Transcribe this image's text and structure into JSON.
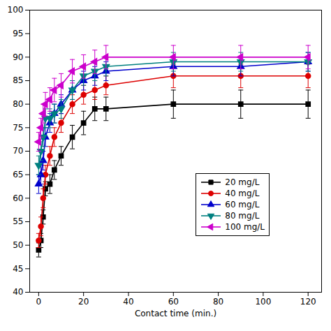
{
  "chart_data": {
    "type": "line",
    "xlabel": "Contact time (min.)",
    "x": [
      0,
      1,
      2,
      3,
      5,
      7,
      10,
      15,
      20,
      25,
      30,
      60,
      90,
      120
    ],
    "series": [
      {
        "name": "20 mg/L",
        "color": "black",
        "marker": "square",
        "line_style": "solid",
        "values": [
          49,
          51,
          56,
          62,
          63,
          66,
          69,
          73,
          76,
          79,
          79,
          80,
          80,
          80
        ],
        "yerr": [
          1.5,
          1.5,
          1.5,
          1.5,
          2,
          2,
          2,
          2.5,
          2.5,
          2.5,
          2.5,
          3,
          3,
          3
        ]
      },
      {
        "name": "40 mg/L",
        "color": "#dd0000",
        "marker": "circle",
        "line_style": "solid",
        "values": [
          51,
          54,
          60,
          65,
          69,
          73,
          76,
          80,
          82,
          83,
          84,
          86,
          86,
          86
        ],
        "yerr": [
          1.5,
          2,
          2,
          2,
          2,
          2,
          2,
          2,
          2,
          2,
          2,
          2.5,
          2.5,
          2.5
        ]
      },
      {
        "name": "60 mg/L",
        "color": "#0000cc",
        "marker": "triangle-up",
        "line_style": "solid",
        "values": [
          63,
          65,
          68,
          73,
          76,
          78,
          80,
          83,
          85,
          86,
          87,
          88,
          88,
          89
        ],
        "yerr": [
          2,
          2,
          2,
          2,
          2,
          2,
          2,
          2,
          2,
          2,
          2,
          2,
          2,
          2
        ]
      },
      {
        "name": "80 mg/L",
        "color": "#008080",
        "marker": "triangle-down",
        "line_style": "solid",
        "values": [
          67,
          70,
          73,
          77,
          77,
          78,
          79,
          83,
          86,
          87,
          88,
          89,
          89,
          89
        ],
        "yerr": [
          2,
          2,
          2,
          2,
          2,
          2,
          2,
          2,
          2,
          2,
          2,
          2,
          2,
          2
        ]
      },
      {
        "name": "100 mg/L",
        "color": "#cc00cc",
        "marker": "triangle-left",
        "line_style": "solid",
        "values": [
          72,
          75,
          78,
          80,
          81,
          83,
          84,
          87,
          88,
          89,
          90,
          90,
          90,
          90
        ],
        "yerr": [
          2,
          2,
          2,
          2.5,
          2.5,
          2.5,
          2.5,
          2.5,
          2.5,
          2.5,
          2.5,
          2.5,
          2.5,
          2.5
        ]
      }
    ],
    "xlim": [
      -4,
      126
    ],
    "ylim": [
      40,
      100
    ],
    "xticks": [
      0,
      20,
      40,
      60,
      80,
      100,
      120
    ],
    "yticks": [
      40,
      45,
      50,
      55,
      60,
      65,
      70,
      75,
      80,
      85,
      90,
      95,
      100
    ],
    "grid": false,
    "legend": "lower right"
  }
}
